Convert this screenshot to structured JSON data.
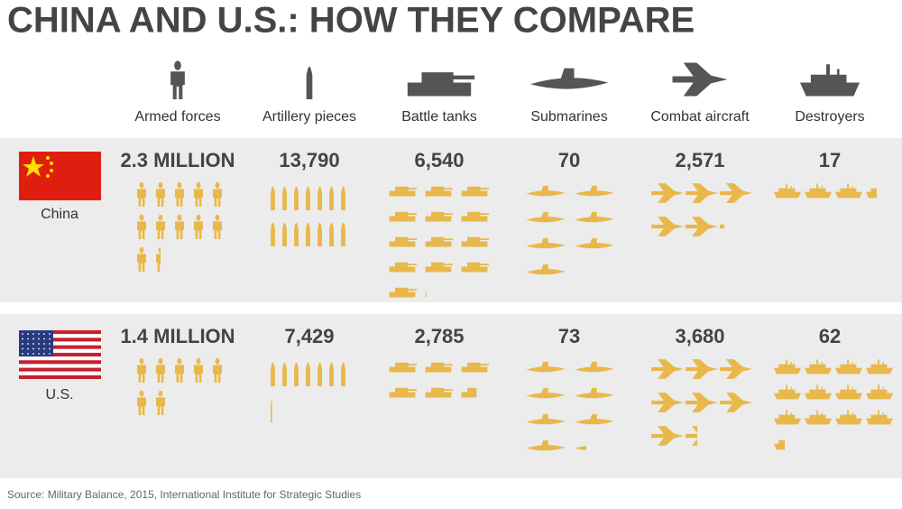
{
  "chart_data": {
    "type": "pictograph",
    "title": "CHINA AND U.S.: HOW THEY COMPARE",
    "categories": [
      "Armed forces",
      "Artillery pieces",
      "Battle tanks",
      "Submarines",
      "Combat aircraft",
      "Destroyers"
    ],
    "series": [
      {
        "name": "China",
        "color": "#e8b84a",
        "values": [
          2300000,
          13790,
          6540,
          70,
          2571,
          17
        ],
        "value_labels": [
          "2.3 MILLION",
          "13,790",
          "6,540",
          "70",
          "2,571",
          "17"
        ]
      },
      {
        "name": "U.S.",
        "color": "#e8b84a",
        "values": [
          1400000,
          7429,
          2785,
          73,
          3680,
          62
        ],
        "value_labels": [
          "1.4 MILLION",
          "7,429",
          "2,785",
          "73",
          "3,680",
          "62"
        ]
      }
    ],
    "source": "Source: Military Balance, 2015, International Institute for Strategic Studies"
  }
}
